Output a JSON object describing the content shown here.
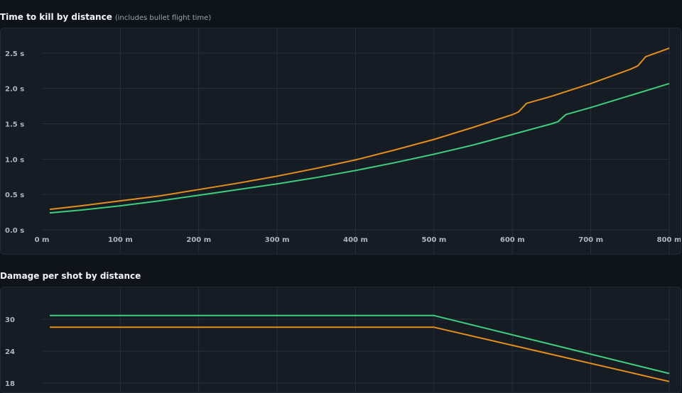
{
  "colors": {
    "orange": "#e58e1a",
    "green": "#3ecf7c",
    "grid": "#262e39"
  },
  "chart_data": [
    {
      "type": "line",
      "title": "Time to kill by distance",
      "subtitle": "(includes bullet flight time)",
      "xlim": [
        0,
        800
      ],
      "ylim": [
        0,
        2.75
      ],
      "x_ticks": [
        0,
        100,
        200,
        300,
        400,
        500,
        600,
        700,
        800
      ],
      "x_tick_labels": [
        "0 m",
        "100 m",
        "200 m",
        "300 m",
        "400 m",
        "500 m",
        "600 m",
        "700 m",
        "800 m"
      ],
      "y_ticks": [
        0,
        0.5,
        1.0,
        1.5,
        2.0,
        2.5
      ],
      "y_tick_labels": [
        "0.0 s",
        "0.5 s",
        "1.0 s",
        "1.5 s",
        "2.0 s",
        "2.5 s"
      ],
      "grid": true,
      "series": [
        {
          "color": "#e58e1a",
          "points": [
            [
              10,
              0.29
            ],
            [
              50,
              0.34
            ],
            [
              100,
              0.41
            ],
            [
              150,
              0.48
            ],
            [
              200,
              0.57
            ],
            [
              250,
              0.66
            ],
            [
              300,
              0.76
            ],
            [
              350,
              0.87
            ],
            [
              400,
              0.99
            ],
            [
              450,
              1.13
            ],
            [
              500,
              1.28
            ],
            [
              550,
              1.45
            ],
            [
              600,
              1.63
            ],
            [
              608,
              1.67
            ],
            [
              618,
              1.79
            ],
            [
              650,
              1.89
            ],
            [
              700,
              2.07
            ],
            [
              750,
              2.27
            ],
            [
              760,
              2.32
            ],
            [
              770,
              2.45
            ],
            [
              800,
              2.57
            ]
          ]
        },
        {
          "color": "#3ecf7c",
          "points": [
            [
              10,
              0.24
            ],
            [
              50,
              0.28
            ],
            [
              100,
              0.34
            ],
            [
              150,
              0.41
            ],
            [
              200,
              0.49
            ],
            [
              250,
              0.57
            ],
            [
              300,
              0.65
            ],
            [
              350,
              0.74
            ],
            [
              400,
              0.84
            ],
            [
              450,
              0.95
            ],
            [
              500,
              1.07
            ],
            [
              550,
              1.2
            ],
            [
              600,
              1.35
            ],
            [
              650,
              1.5
            ],
            [
              658,
              1.53
            ],
            [
              668,
              1.63
            ],
            [
              700,
              1.73
            ],
            [
              750,
              1.9
            ],
            [
              800,
              2.07
            ]
          ]
        }
      ]
    },
    {
      "type": "line",
      "title": "Damage per shot by distance",
      "xlim": [
        0,
        800
      ],
      "ylim": [
        16,
        36
      ],
      "y_ticks": [
        18,
        24,
        30
      ],
      "y_tick_labels": [
        "18",
        "24",
        "30"
      ],
      "grid": true,
      "series": [
        {
          "color": "#3ecf7c",
          "points": [
            [
              10,
              30.7
            ],
            [
              500,
              30.7
            ],
            [
              800,
              19.8
            ]
          ]
        },
        {
          "color": "#e58e1a",
          "points": [
            [
              10,
              28.5
            ],
            [
              500,
              28.5
            ],
            [
              800,
              18.3
            ]
          ]
        }
      ]
    }
  ]
}
